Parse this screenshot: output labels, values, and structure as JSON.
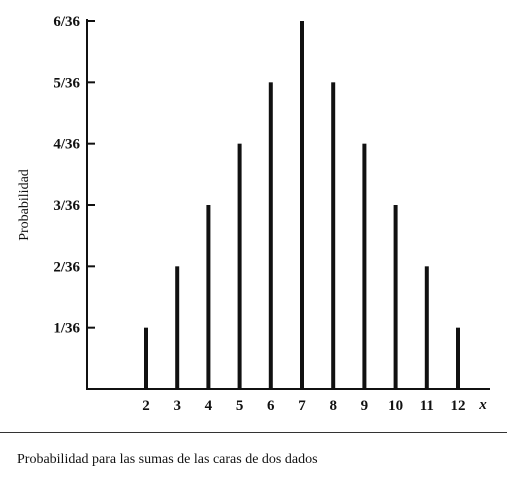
{
  "chart_data": {
    "type": "bar",
    "categories": [
      "2",
      "3",
      "4",
      "5",
      "6",
      "7",
      "8",
      "9",
      "10",
      "11",
      "12"
    ],
    "values": [
      1,
      2,
      3,
      4,
      5,
      6,
      5,
      4,
      3,
      2,
      1
    ],
    "value_unit": "/36",
    "ytick_labels": [
      "1/36",
      "2/36",
      "3/36",
      "4/36",
      "5/36",
      "6/36"
    ],
    "ylim": [
      0,
      6
    ],
    "ylabel": "Probabilidad",
    "xlabel": "x",
    "grid": false,
    "bar_color": "#111111"
  },
  "caption": "Probabilidad para las sumas de las caras de dos dados"
}
